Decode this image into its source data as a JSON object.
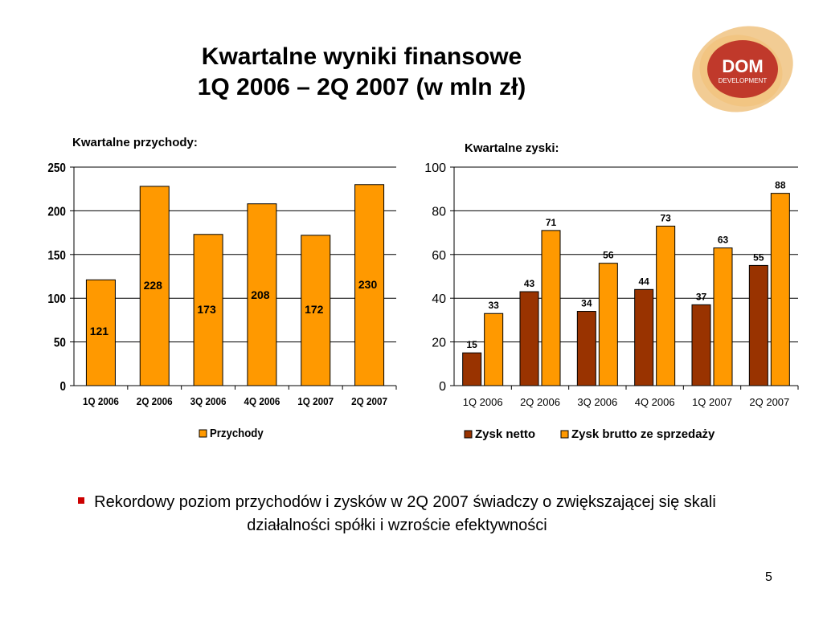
{
  "slide": {
    "title_line1": "Kwartalne wyniki finansowe",
    "title_line2": "1Q 2006 – 2Q 2007 (w mln zł)",
    "logo_text_main": "DOM",
    "logo_text_sub": "DEVELOPMENT",
    "bullet_text": "Rekordowy poziom przychodów i zysków w 2Q 2007 świadczy o zwiększającej się skali działalności spółki i wzroście efektywności",
    "page_number": "5"
  },
  "colors": {
    "orange": "#FF9900",
    "dark_red": "#993300",
    "bullet_red": "#CC0000",
    "logo_orange": "#E8A33C",
    "logo_red": "#C0392B"
  },
  "chart_data": [
    {
      "type": "bar",
      "title": "Kwartalne przychody:",
      "categories": [
        "1Q 2006",
        "2Q 2006",
        "3Q 2006",
        "4Q 2006",
        "1Q 2007",
        "2Q 2007"
      ],
      "series": [
        {
          "name": "Przychody",
          "values": [
            121,
            228,
            173,
            208,
            172,
            230
          ],
          "color": "#FF9900"
        }
      ],
      "ylim": [
        0,
        250
      ],
      "yticks": [
        0,
        50,
        100,
        150,
        200,
        250
      ],
      "grid": true,
      "legend": "bottom"
    },
    {
      "type": "bar",
      "title": "Kwartalne zyski:",
      "categories": [
        "1Q 2006",
        "2Q 2006",
        "3Q 2006",
        "4Q 2006",
        "1Q 2007",
        "2Q 2007"
      ],
      "series": [
        {
          "name": "Zysk netto",
          "values": [
            15,
            43,
            34,
            44,
            37,
            55
          ],
          "color": "#993300"
        },
        {
          "name": "Zysk brutto ze sprzedaży",
          "values": [
            33,
            71,
            56,
            73,
            63,
            88
          ],
          "color": "#FF9900"
        }
      ],
      "ylim": [
        0,
        100
      ],
      "yticks": [
        0,
        20,
        40,
        60,
        80,
        100
      ],
      "grid": true,
      "legend": "bottom"
    }
  ]
}
